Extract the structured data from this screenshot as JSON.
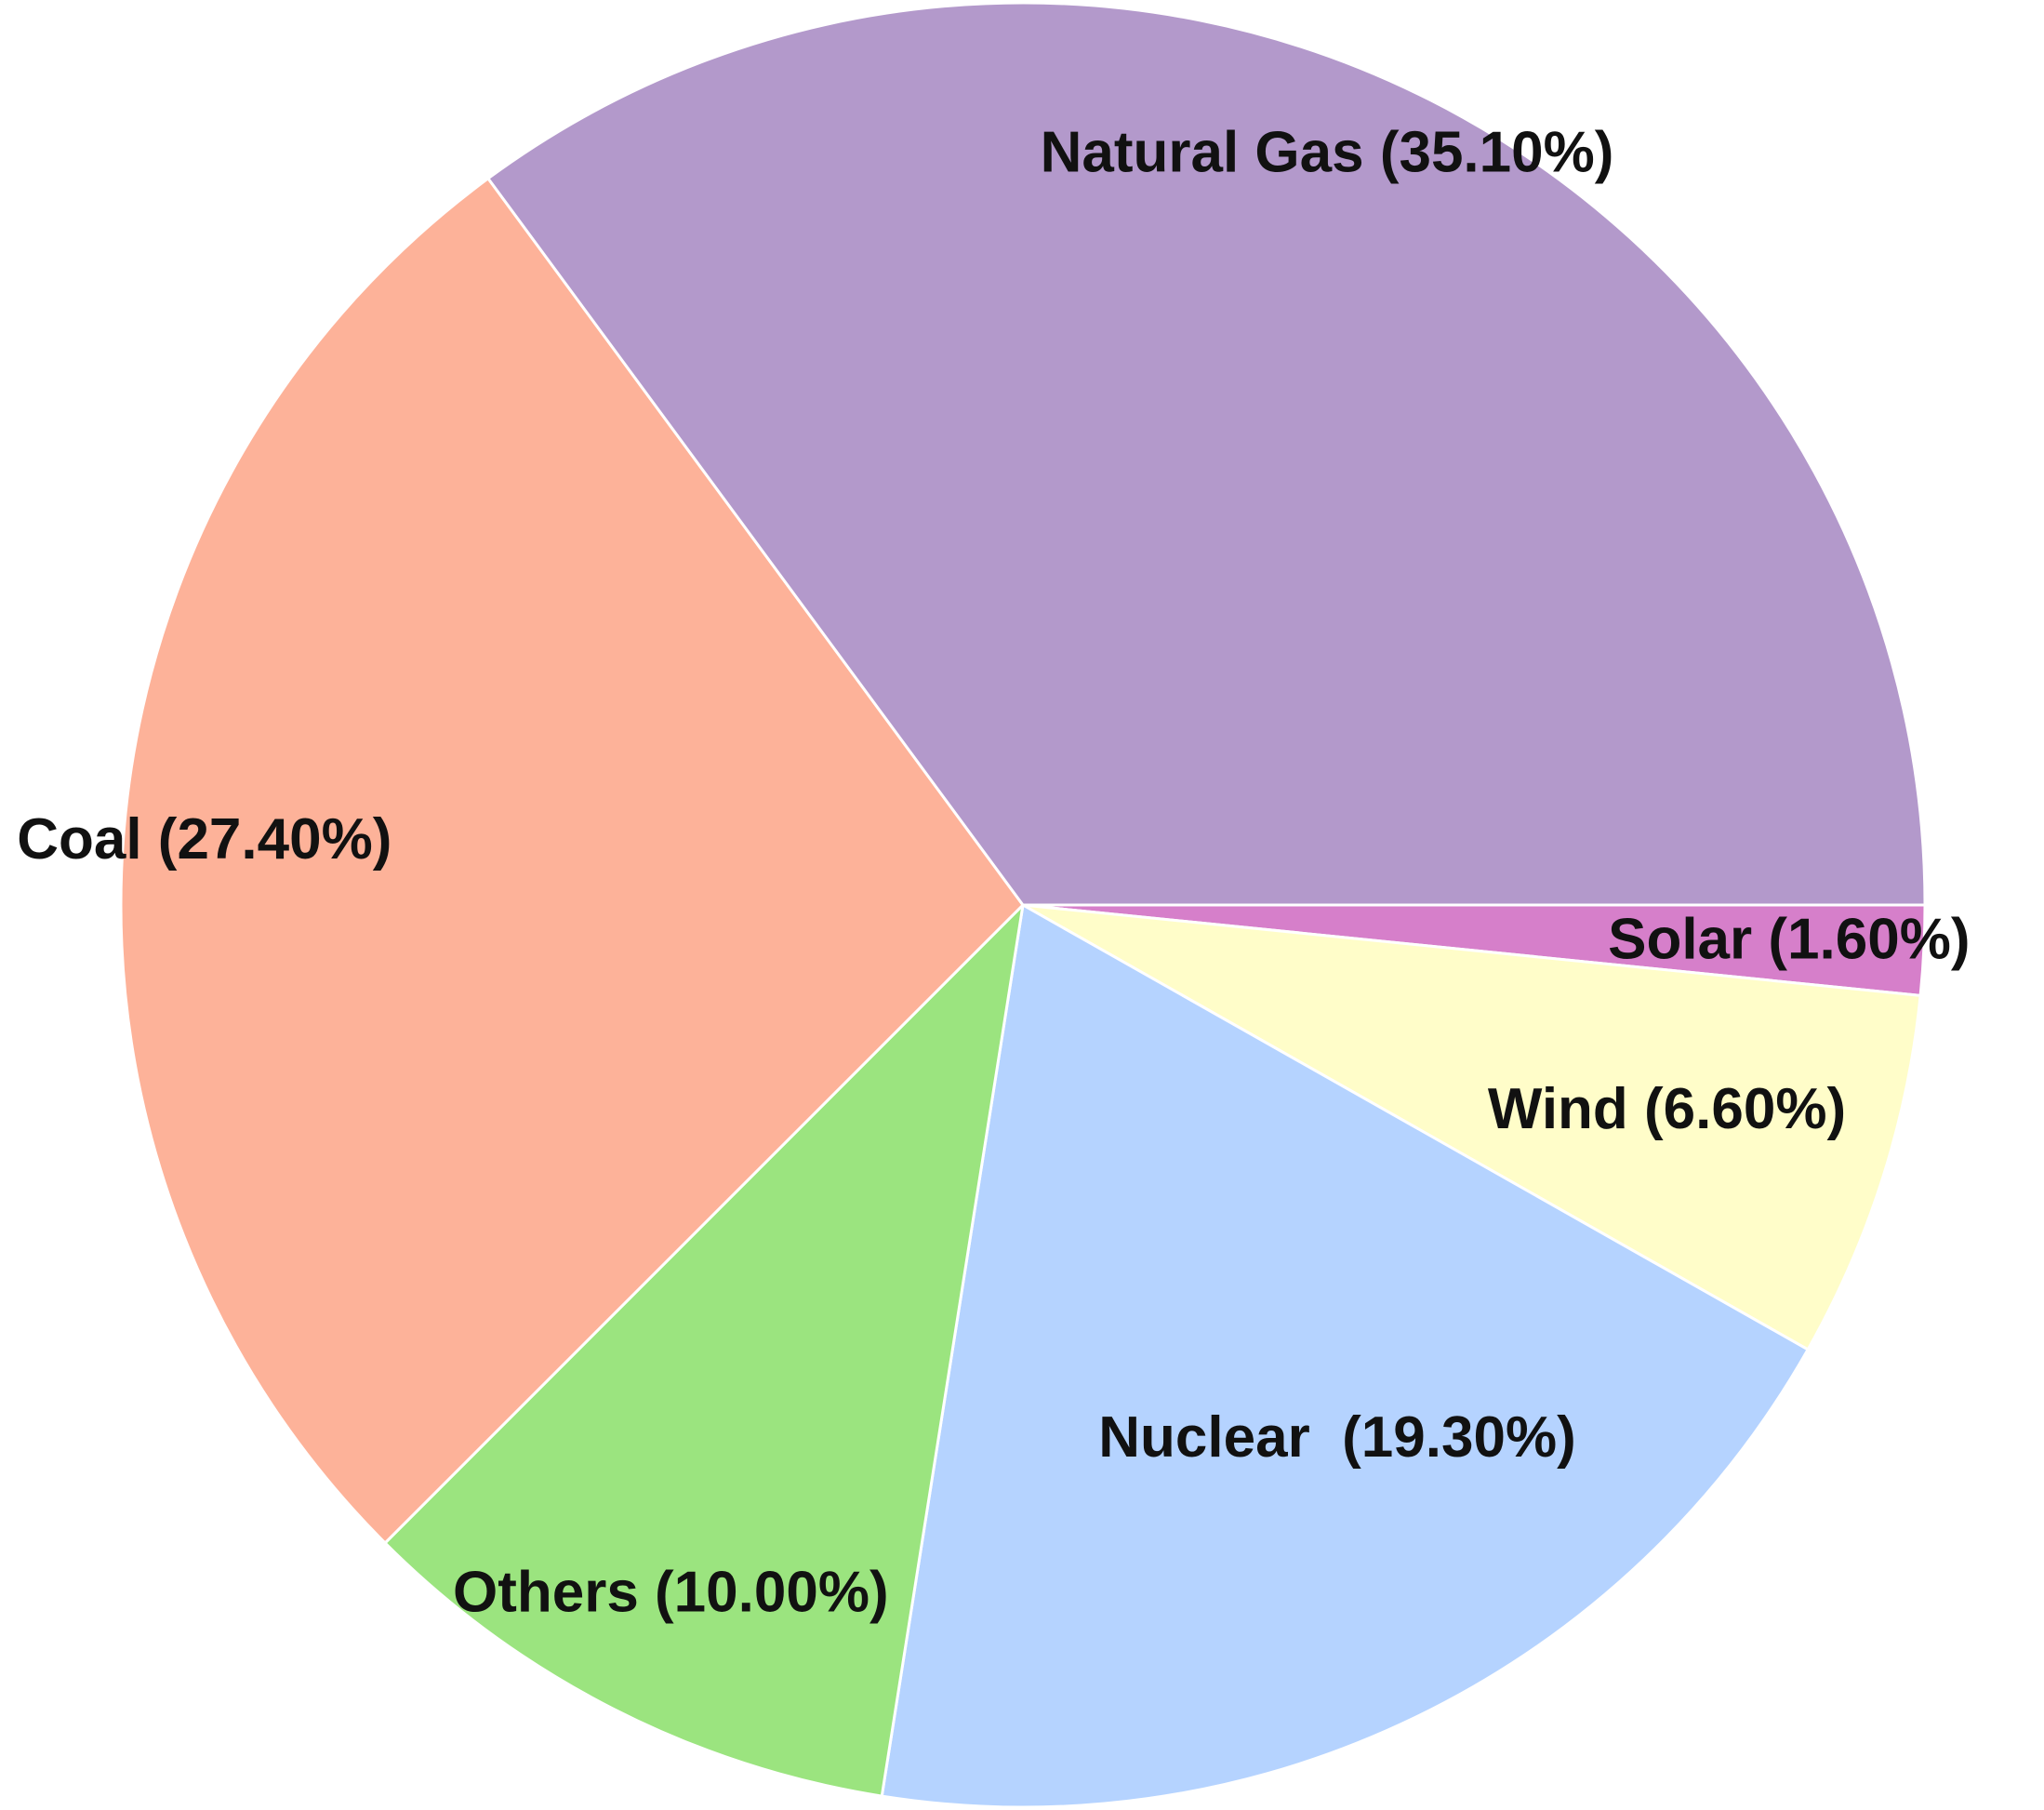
{
  "chart_data": {
    "type": "pie",
    "title": "",
    "start_angle_deg": 0,
    "direction": "clockwise",
    "slices": [
      {
        "label": "Solar",
        "value": 1.6,
        "display": "Solar (1.60%)",
        "color": "#d67fca"
      },
      {
        "label": "Wind",
        "value": 6.6,
        "display": "Wind (6.60%)",
        "color": "#fffdc9"
      },
      {
        "label": "Nuclear",
        "value": 19.3,
        "display": "Nuclear  (19.30%)",
        "color": "#b5d3ff"
      },
      {
        "label": "Others",
        "value": 10.0,
        "display": "Others (10.00%)",
        "color": "#9be47f"
      },
      {
        "label": "Coal",
        "value": 27.4,
        "display": "Coal (27.40%)",
        "color": "#fdb299"
      },
      {
        "label": "Natural Gas",
        "value": 35.1,
        "display": "Natural Gas (35.10%)",
        "color": "#b399cb"
      }
    ]
  }
}
